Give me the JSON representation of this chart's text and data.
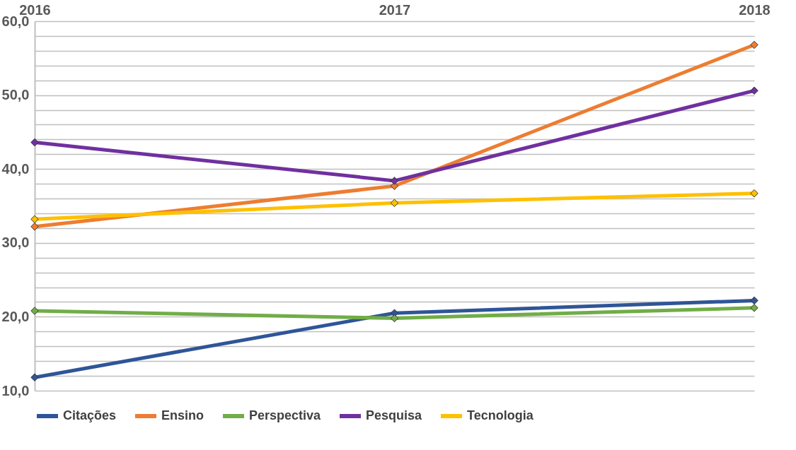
{
  "chart_data": {
    "type": "line",
    "categories": [
      "2016",
      "2017",
      "2018"
    ],
    "series": [
      {
        "name": "Citações",
        "color": "#2f5597",
        "values": [
          11.8,
          20.5,
          22.2
        ]
      },
      {
        "name": "Ensino",
        "color": "#ed7d31",
        "values": [
          32.2,
          37.7,
          56.8
        ]
      },
      {
        "name": "Perspectiva",
        "color": "#70ad47",
        "values": [
          20.8,
          19.8,
          21.2
        ]
      },
      {
        "name": "Pesquisa",
        "color": "#7030a0",
        "values": [
          43.6,
          38.4,
          50.6
        ]
      },
      {
        "name": "Tecnologia",
        "color": "#ffc000",
        "values": [
          33.2,
          35.4,
          36.7
        ]
      }
    ],
    "ylim": [
      10,
      60
    ],
    "yticks": [
      {
        "value": 10,
        "label": "10,0"
      },
      {
        "value": 12,
        "label": null
      },
      {
        "value": 14,
        "label": null
      },
      {
        "value": 16,
        "label": null
      },
      {
        "value": 18,
        "label": null
      },
      {
        "value": 20,
        "label": "20,0"
      },
      {
        "value": 22,
        "label": null
      },
      {
        "value": 24,
        "label": null
      },
      {
        "value": 26,
        "label": null
      },
      {
        "value": 28,
        "label": null
      },
      {
        "value": 30,
        "label": "30,0"
      },
      {
        "value": 32,
        "label": null
      },
      {
        "value": 34,
        "label": null
      },
      {
        "value": 36,
        "label": null
      },
      {
        "value": 38,
        "label": null
      },
      {
        "value": 40,
        "label": "40,0"
      },
      {
        "value": 42,
        "label": null
      },
      {
        "value": 44,
        "label": null
      },
      {
        "value": 46,
        "label": null
      },
      {
        "value": 48,
        "label": null
      },
      {
        "value": 50,
        "label": "50,0"
      },
      {
        "value": 52,
        "label": null
      },
      {
        "value": 54,
        "label": null
      },
      {
        "value": 56,
        "label": null
      },
      {
        "value": 58,
        "label": null
      },
      {
        "value": 60,
        "label": "60,0"
      }
    ],
    "grid": "y",
    "legend": "bottom",
    "marker": "diamond",
    "line_style": "solid"
  }
}
